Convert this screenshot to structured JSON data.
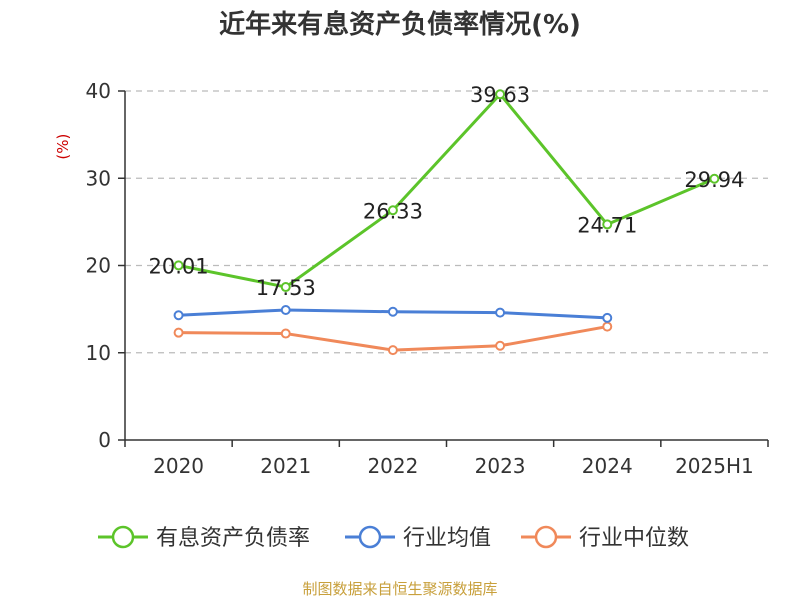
{
  "source_note": "制图数据来自恒生聚源数据库",
  "colors": {
    "green": "#5cc42a",
    "blue": "#4a7fd6",
    "orange": "#f0895a",
    "unit": "#cc0000",
    "axis": "#333333",
    "grid": "#bbbbbb"
  },
  "chart_data": {
    "type": "line",
    "title": "近年来有息资产负债率情况(%)",
    "ylabel": "(%)",
    "xlabel": "",
    "categories": [
      "2020",
      "2021",
      "2022",
      "2023",
      "2024",
      "2025H1"
    ],
    "ylim": [
      0,
      40
    ],
    "yticks": [
      0,
      10,
      20,
      30,
      40
    ],
    "grid": true,
    "legend_position": "bottom",
    "series": [
      {
        "name": "有息资产负债率",
        "color": "#5cc42a",
        "values": [
          20.01,
          17.53,
          26.33,
          39.63,
          24.71,
          29.94
        ],
        "labels": [
          "20.01",
          "17.53",
          "26.33",
          "39.63",
          "24.71",
          "29.94"
        ]
      },
      {
        "name": "行业均值",
        "color": "#4a7fd6",
        "values": [
          14.3,
          14.9,
          14.7,
          14.6,
          14.0,
          null
        ]
      },
      {
        "name": "行业中位数",
        "color": "#f0895a",
        "values": [
          12.3,
          12.2,
          10.3,
          10.8,
          13.0,
          null
        ]
      }
    ]
  }
}
